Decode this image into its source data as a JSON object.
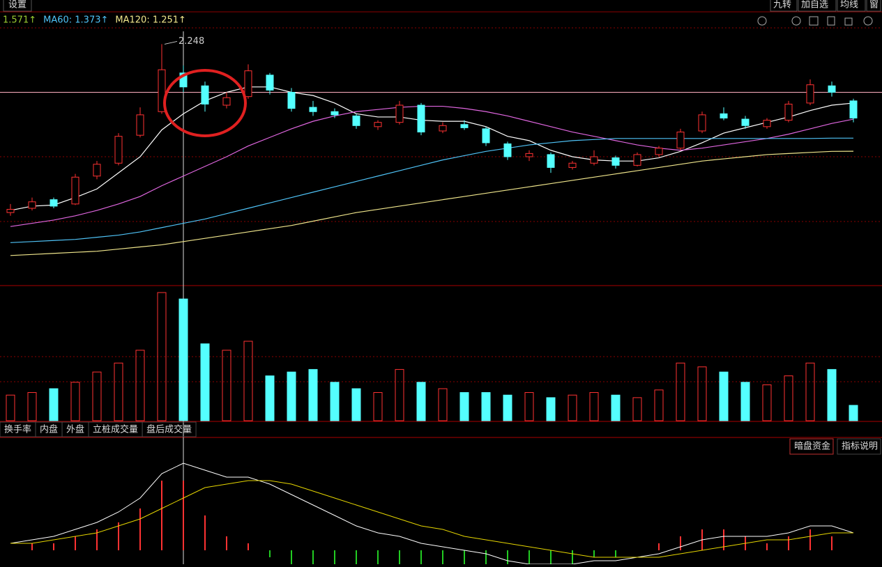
{
  "toolbar": {
    "left": [
      "设置"
    ],
    "right": [
      "九转",
      "加自选",
      "均线",
      "窗"
    ]
  },
  "legend": [
    {
      "label": "1.571↑",
      "color": "#9acd32"
    },
    {
      "label": "MA60: 1.373↑",
      "color": "#4fc3f7"
    },
    {
      "label": "MA120: 1.251↑",
      "color": "#f0e68c"
    }
  ],
  "tabs": [
    "换手率",
    "内盘",
    "外盘",
    "立桩成交量",
    "盘后成交量"
  ],
  "right_tabs": [
    "暗盘资金",
    "指标说明"
  ],
  "chart_data": {
    "type": "candlestick",
    "ylim": [
      0,
      2.4
    ],
    "peak_high": 2.248,
    "crosshair_price": 1.8,
    "up_color": "#ff3232",
    "down_color": "#54ffff",
    "open": [
      0.68,
      0.72,
      0.8,
      0.76,
      1.02,
      1.14,
      1.4,
      1.62,
      1.98,
      1.86,
      1.68,
      1.76,
      1.96,
      1.8,
      1.66,
      1.62,
      1.58,
      1.48,
      1.52,
      1.68,
      1.44,
      1.5,
      1.46,
      1.32,
      1.2,
      1.22,
      1.1,
      1.14,
      1.19,
      1.12,
      1.22,
      1.28,
      1.44,
      1.6,
      1.55,
      1.48,
      1.54,
      1.7,
      1.86,
      1.72
    ],
    "high": [
      0.76,
      0.82,
      0.82,
      1.04,
      1.16,
      1.42,
      1.66,
      2.248,
      2.05,
      1.9,
      1.8,
      2.06,
      1.98,
      1.84,
      1.72,
      1.65,
      1.6,
      1.54,
      1.72,
      1.7,
      1.52,
      1.54,
      1.48,
      1.34,
      1.26,
      1.24,
      1.16,
      1.26,
      1.21,
      1.24,
      1.3,
      1.46,
      1.62,
      1.66,
      1.58,
      1.56,
      1.72,
      1.92,
      1.9,
      1.74
    ],
    "low": [
      0.65,
      0.7,
      0.72,
      0.75,
      0.99,
      1.12,
      1.38,
      1.6,
      1.8,
      1.62,
      1.65,
      1.74,
      1.78,
      1.62,
      1.58,
      1.56,
      1.46,
      1.45,
      1.5,
      1.4,
      1.42,
      1.45,
      1.3,
      1.17,
      1.16,
      1.05,
      1.08,
      1.12,
      1.09,
      1.11,
      1.2,
      1.26,
      1.42,
      1.54,
      1.46,
      1.46,
      1.52,
      1.68,
      1.76,
      1.52
    ],
    "close": [
      0.71,
      0.78,
      0.74,
      1.01,
      1.13,
      1.39,
      1.59,
      2.01,
      1.85,
      1.69,
      1.75,
      2.0,
      1.82,
      1.65,
      1.62,
      1.59,
      1.49,
      1.52,
      1.68,
      1.43,
      1.49,
      1.47,
      1.33,
      1.2,
      1.23,
      1.1,
      1.14,
      1.2,
      1.12,
      1.22,
      1.28,
      1.43,
      1.59,
      1.56,
      1.49,
      1.54,
      1.69,
      1.87,
      1.8,
      1.56
    ],
    "ma_lines": [
      {
        "color": "#ffffff",
        "values": [
          0.7,
          0.74,
          0.75,
          0.82,
          0.9,
          1.05,
          1.2,
          1.45,
          1.6,
          1.72,
          1.8,
          1.85,
          1.85,
          1.8,
          1.77,
          1.7,
          1.6,
          1.57,
          1.57,
          1.54,
          1.53,
          1.53,
          1.48,
          1.39,
          1.35,
          1.26,
          1.2,
          1.17,
          1.16,
          1.16,
          1.19,
          1.25,
          1.33,
          1.42,
          1.47,
          1.52,
          1.57,
          1.63,
          1.68,
          1.7
        ]
      },
      {
        "color": "#e066e0",
        "values": [
          0.55,
          0.58,
          0.61,
          0.65,
          0.7,
          0.76,
          0.83,
          0.93,
          1.02,
          1.11,
          1.2,
          1.3,
          1.38,
          1.46,
          1.53,
          1.58,
          1.62,
          1.64,
          1.66,
          1.67,
          1.67,
          1.65,
          1.62,
          1.58,
          1.53,
          1.48,
          1.43,
          1.39,
          1.35,
          1.31,
          1.28,
          1.26,
          1.28,
          1.31,
          1.34,
          1.37,
          1.41,
          1.46,
          1.51,
          1.55
        ]
      },
      {
        "color": "#4fc3f7",
        "values": [
          0.4,
          0.41,
          0.42,
          0.43,
          0.45,
          0.47,
          0.5,
          0.54,
          0.58,
          0.62,
          0.67,
          0.72,
          0.77,
          0.82,
          0.87,
          0.92,
          0.97,
          1.02,
          1.07,
          1.12,
          1.17,
          1.21,
          1.25,
          1.28,
          1.31,
          1.33,
          1.35,
          1.36,
          1.37,
          1.37,
          1.37,
          1.37,
          1.37,
          1.37,
          1.37,
          1.37,
          1.37,
          1.37,
          1.373,
          1.373
        ]
      },
      {
        "color": "#f0e68c",
        "values": [
          0.28,
          0.29,
          0.3,
          0.31,
          0.32,
          0.34,
          0.36,
          0.38,
          0.41,
          0.44,
          0.47,
          0.5,
          0.53,
          0.56,
          0.6,
          0.64,
          0.68,
          0.71,
          0.74,
          0.77,
          0.8,
          0.83,
          0.86,
          0.89,
          0.92,
          0.95,
          0.98,
          1.01,
          1.04,
          1.07,
          1.1,
          1.13,
          1.16,
          1.18,
          1.2,
          1.22,
          1.23,
          1.24,
          1.25,
          1.251
        ]
      }
    ],
    "volume": {
      "ylim": [
        0,
        100
      ],
      "values": [
        20,
        22,
        25,
        30,
        38,
        45,
        55,
        100,
        95,
        60,
        55,
        62,
        35,
        38,
        40,
        30,
        25,
        22,
        40,
        30,
        25,
        22,
        22,
        20,
        22,
        18,
        20,
        22,
        20,
        18,
        24,
        45,
        42,
        38,
        30,
        28,
        35,
        45,
        40,
        12
      ]
    },
    "macd": {
      "ylim": [
        -0.04,
        0.28
      ],
      "dif": [
        0.02,
        0.03,
        0.04,
        0.06,
        0.08,
        0.11,
        0.15,
        0.22,
        0.25,
        0.23,
        0.21,
        0.21,
        0.19,
        0.16,
        0.13,
        0.1,
        0.07,
        0.05,
        0.04,
        0.02,
        0.01,
        0.0,
        -0.01,
        -0.03,
        -0.04,
        -0.04,
        -0.04,
        -0.03,
        -0.03,
        -0.02,
        -0.01,
        0.01,
        0.03,
        0.04,
        0.04,
        0.04,
        0.05,
        0.07,
        0.07,
        0.05
      ],
      "dea": [
        0.02,
        0.02,
        0.03,
        0.04,
        0.05,
        0.07,
        0.09,
        0.12,
        0.15,
        0.18,
        0.19,
        0.2,
        0.2,
        0.19,
        0.17,
        0.15,
        0.13,
        0.11,
        0.09,
        0.07,
        0.06,
        0.04,
        0.03,
        0.02,
        0.01,
        0.0,
        -0.01,
        -0.02,
        -0.02,
        -0.02,
        -0.02,
        -0.01,
        0.0,
        0.01,
        0.02,
        0.03,
        0.03,
        0.04,
        0.05,
        0.05
      ],
      "hist": [
        0.0,
        0.02,
        0.02,
        0.04,
        0.06,
        0.08,
        0.12,
        0.2,
        0.2,
        0.1,
        0.04,
        0.02,
        -0.02,
        -0.06,
        -0.08,
        -0.1,
        -0.12,
        -0.12,
        -0.1,
        -0.1,
        -0.1,
        -0.08,
        -0.08,
        -0.1,
        -0.1,
        -0.08,
        -0.06,
        -0.02,
        -0.02,
        0.0,
        0.02,
        0.04,
        0.06,
        0.06,
        0.04,
        0.02,
        0.04,
        0.06,
        0.04,
        0.0
      ]
    }
  }
}
